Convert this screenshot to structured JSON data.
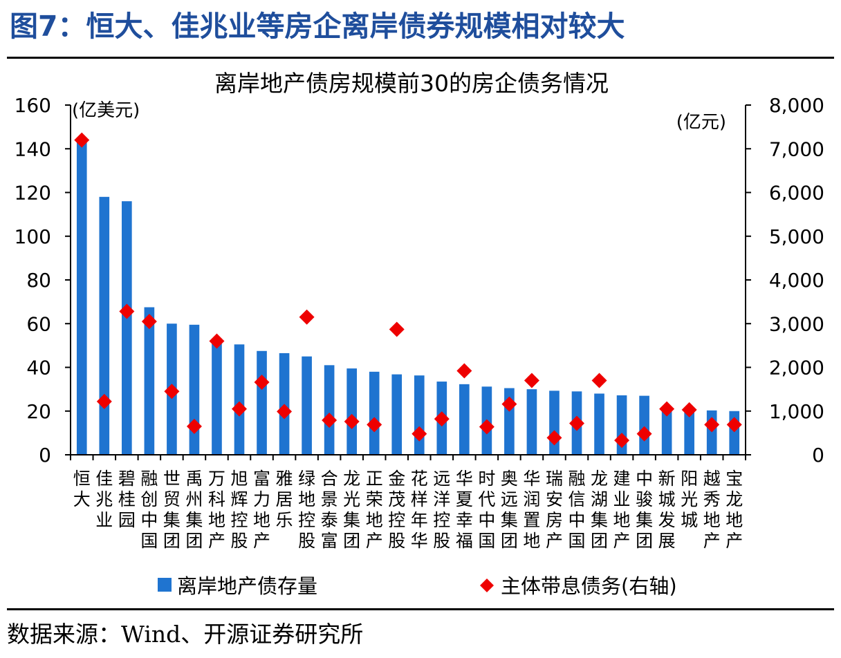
{
  "figure_title": "图7：恒大、佳兆业等房企离岸债券规模相对较大",
  "source": "数据来源：Wind、开源证券研究所",
  "colors": {
    "bar": "#1f74d0",
    "diamond": "#ee0000",
    "title": "#1f4e9c",
    "axis": "#000000"
  },
  "chart_data": {
    "type": "bar",
    "title": "离岸地产债房规模前30的房企债务情况",
    "left_axis_unit": "(亿美元)",
    "right_axis_unit": "(亿元)",
    "ylim_left": [
      0,
      160
    ],
    "ylim_right": [
      0,
      8000
    ],
    "y_ticks_left": [
      "0",
      "20",
      "40",
      "60",
      "80",
      "100",
      "120",
      "140",
      "160"
    ],
    "y_ticks_right": [
      "0",
      "1,000",
      "2,000",
      "3,000",
      "4,000",
      "5,000",
      "6,000",
      "7,000",
      "8,000"
    ],
    "grid": false,
    "legend_position": "bottom",
    "categories": [
      "恒大",
      "佳兆业",
      "碧桂园",
      "融创中国",
      "世贸集团",
      "禹州集团",
      "万科地产",
      "旭辉控股",
      "富力地产",
      "雅居乐",
      "绿地控股",
      "合景泰富",
      "龙光集团",
      "正荣地产",
      "金茂控股",
      "花样年华",
      "远洋控股",
      "华夏幸福",
      "时代中国",
      "奥远集团",
      "华润置地",
      "瑞安房产",
      "融信中国",
      "龙湖集团",
      "建业地产",
      "中骏集团",
      "新城发展",
      "阳光城",
      "越秀地产",
      "宝龙地产"
    ],
    "series": [
      {
        "name": "离岸地产债存量",
        "type": "bar",
        "axis": "left",
        "values": [
          143,
          118,
          116,
          67.5,
          60,
          59.5,
          52,
          50.5,
          47.5,
          46.5,
          45,
          41,
          39.5,
          38,
          36.8,
          36.3,
          33.5,
          32.3,
          31.2,
          30.5,
          30,
          29.3,
          29,
          28,
          27.2,
          27,
          21.5,
          21,
          20.3,
          20
        ]
      },
      {
        "name": "主体带息债务(右轴)",
        "type": "scatter",
        "axis": "right",
        "marker": "diamond",
        "values": [
          7200,
          1220,
          3280,
          3050,
          1450,
          650,
          2600,
          1050,
          1660,
          990,
          3150,
          790,
          760,
          690,
          2870,
          480,
          820,
          1920,
          640,
          1160,
          1700,
          390,
          720,
          1700,
          330,
          480,
          1050,
          1030,
          690,
          690
        ]
      }
    ]
  }
}
